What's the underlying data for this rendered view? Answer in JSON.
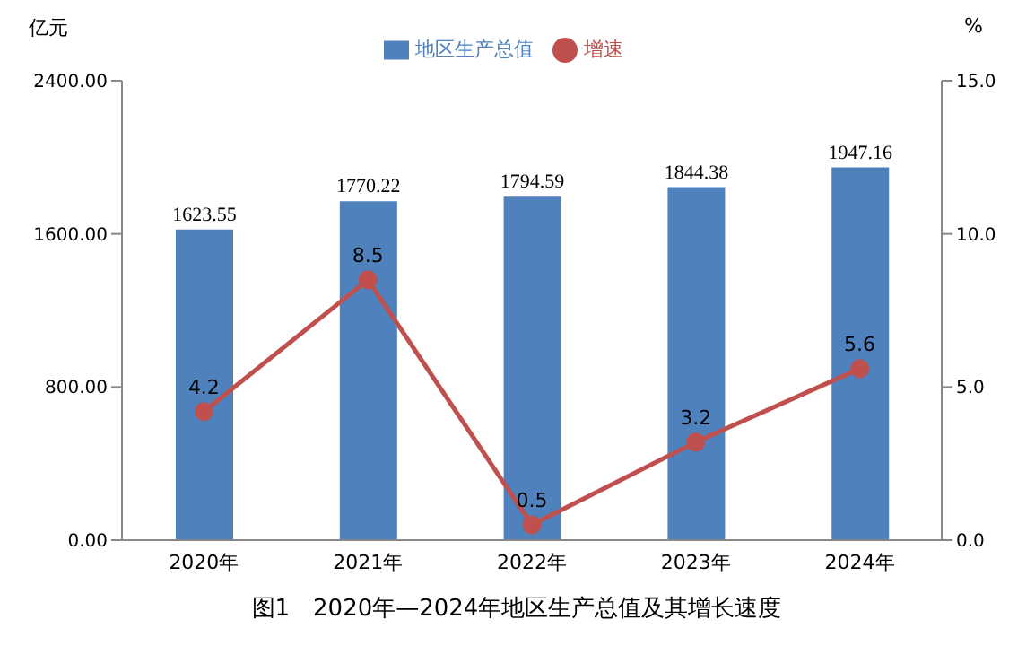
{
  "chart_data": {
    "type": "bar",
    "title": "图1　2020年—2024年地区生产总值及其增长速度",
    "ylabel": "亿元",
    "y2label": "%",
    "categories": [
      "2020年",
      "2021年",
      "2022年",
      "2023年",
      "2024年"
    ],
    "series": [
      {
        "name": "地区生产总值",
        "color": "#4f81bd",
        "values": [
          1623.55,
          1770.22,
          1794.59,
          1844.38,
          1947.16
        ]
      },
      {
        "name": "增速",
        "type": "line",
        "axis": "y2",
        "color": "#c0504d",
        "values": [
          4.2,
          8.5,
          0.5,
          3.2,
          5.6
        ]
      }
    ],
    "ylim": [
      0,
      2400
    ],
    "yticks": [
      {
        "value": 0,
        "label": "0.00"
      },
      {
        "value": 800,
        "label": "800.00"
      },
      {
        "value": 1600,
        "label": "1600.00"
      },
      {
        "value": 2400,
        "label": "2400.00"
      }
    ],
    "y2lim": [
      0,
      15
    ],
    "y2ticks": [
      {
        "value": 0,
        "label": "0.0"
      },
      {
        "value": 5,
        "label": "5.0"
      },
      {
        "value": 10,
        "label": "10.0"
      },
      {
        "value": 15,
        "label": "15.0"
      }
    ],
    "data_labels": true,
    "legend": "top",
    "marker": "circle",
    "grid": false
  }
}
